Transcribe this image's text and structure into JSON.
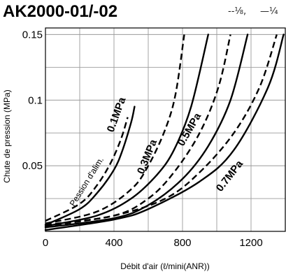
{
  "chart_data": {
    "type": "line",
    "title": "AK2000-01/-02",
    "legend": {
      "dashed_label": "--⅛,",
      "solid_label": "—¼",
      "placement": "top-right"
    },
    "xlabel": "Débit d'air (ℓ/mini(ANR))",
    "ylabel": "Chute de pression (MPa)",
    "xlim": [
      0,
      1400
    ],
    "ylim": [
      0,
      0.155
    ],
    "xticks": [
      0,
      400,
      800,
      1200
    ],
    "xtick_labels": [
      "0",
      "400",
      "800",
      "1200"
    ],
    "yticks": [
      0.05,
      0.1,
      0.15
    ],
    "ytick_labels": [
      "0.05",
      "0.1",
      "0.15"
    ],
    "x_grid": [
      0,
      200,
      400,
      600,
      800,
      1000,
      1200,
      1400
    ],
    "y_grid": [
      0.025,
      0.05,
      0.075,
      0.1,
      0.125,
      0.15
    ],
    "grid": true,
    "annotation": "Pession d'alim.",
    "series": [
      {
        "name": "0.1MPa",
        "style": "solid",
        "x": [
          0,
          200,
          300,
          400,
          450,
          500,
          520
        ],
        "y": [
          0.005,
          0.017,
          0.029,
          0.047,
          0.062,
          0.083,
          0.095
        ]
      },
      {
        "name": "0.1MPa",
        "style": "dashed",
        "x": [
          0,
          200,
          300,
          380,
          440,
          480
        ],
        "y": [
          0.008,
          0.021,
          0.035,
          0.052,
          0.07,
          0.087
        ]
      },
      {
        "name": "0.3MPa",
        "style": "solid",
        "x": [
          0,
          300,
          500,
          650,
          750,
          850,
          950
        ],
        "y": [
          0.004,
          0.012,
          0.025,
          0.043,
          0.062,
          0.095,
          0.15
        ]
      },
      {
        "name": "0.3MPa",
        "style": "dashed",
        "x": [
          0,
          300,
          500,
          600,
          700,
          760,
          810
        ],
        "y": [
          0.006,
          0.015,
          0.032,
          0.05,
          0.078,
          0.105,
          0.15
        ]
      },
      {
        "name": "0.5MPa",
        "style": "solid",
        "x": [
          0,
          400,
          600,
          800,
          950,
          1080,
          1180
        ],
        "y": [
          0.003,
          0.01,
          0.02,
          0.04,
          0.065,
          0.1,
          0.15
        ]
      },
      {
        "name": "0.5MPa",
        "style": "dashed",
        "x": [
          0,
          400,
          600,
          750,
          900,
          1010,
          1080
        ],
        "y": [
          0.005,
          0.012,
          0.025,
          0.045,
          0.075,
          0.11,
          0.15
        ]
      },
      {
        "name": "0.7MPa",
        "style": "solid",
        "x": [
          0,
          400,
          600,
          900,
          1100,
          1300,
          1390
        ],
        "y": [
          0.001,
          0.009,
          0.017,
          0.038,
          0.062,
          0.11,
          0.15
        ]
      },
      {
        "name": "0.7MPa",
        "style": "dashed",
        "x": [
          0,
          400,
          700,
          900,
          1100,
          1250,
          1350
        ],
        "y": [
          0.004,
          0.012,
          0.025,
          0.045,
          0.075,
          0.11,
          0.15
        ]
      }
    ],
    "curve_labels": [
      {
        "text": "0.1MPa"
      },
      {
        "text": "0.3MPa"
      },
      {
        "text": "0.5MPa"
      },
      {
        "text": "0.7MPa"
      }
    ]
  }
}
